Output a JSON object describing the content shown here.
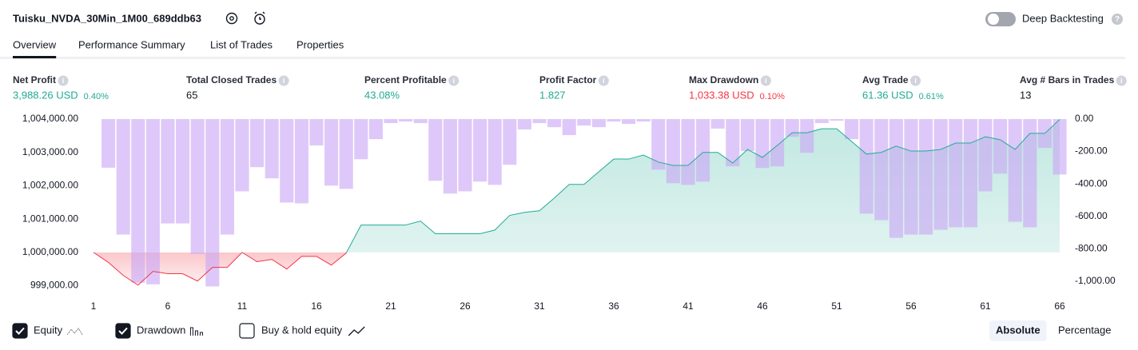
{
  "header": {
    "title": "Tuisku_NVDA_30Min_1M00_689ddb63",
    "toggle_label": "Deep Backtesting",
    "toggle_on": false,
    "help": "?"
  },
  "tabs": {
    "items": [
      "Overview",
      "Performance Summary",
      "List of Trades",
      "Properties"
    ],
    "active": 0
  },
  "metrics": [
    {
      "label": "Net Profit",
      "value": "3,988.26 USD",
      "percent": "0.40%",
      "color": "#22ab94"
    },
    {
      "label": "Total Closed Trades",
      "value": "65",
      "color": "#131722"
    },
    {
      "label": "Percent Profitable",
      "value": "43.08%",
      "color": "#22ab94"
    },
    {
      "label": "Profit Factor",
      "value": "1.827",
      "color": "#22ab94"
    },
    {
      "label": "Max Drawdown",
      "value": "1,033.38 USD",
      "percent": "0.10%",
      "color": "#f23645"
    },
    {
      "label": "Avg Trade",
      "value": "61.36 USD",
      "percent": "0.61%",
      "color": "#22ab94"
    },
    {
      "label": "Avg # Bars in Trades",
      "value": "13",
      "color": "#131722"
    }
  ],
  "chart_data": {
    "type": "line",
    "x": [
      1,
      2,
      3,
      4,
      5,
      6,
      7,
      8,
      9,
      10,
      11,
      12,
      13,
      14,
      15,
      16,
      17,
      18,
      19,
      20,
      21,
      22,
      23,
      24,
      25,
      26,
      27,
      28,
      29,
      30,
      31,
      32,
      33,
      34,
      35,
      36,
      37,
      38,
      39,
      40,
      41,
      42,
      43,
      44,
      45,
      46,
      47,
      48,
      49,
      50,
      51,
      52,
      53,
      54,
      55,
      56,
      57,
      58,
      59,
      60,
      61,
      62,
      63,
      64,
      65,
      66
    ],
    "xlim": [
      1,
      66
    ],
    "xticks": [
      1,
      6,
      11,
      16,
      21,
      26,
      31,
      36,
      41,
      46,
      51,
      56,
      61,
      66
    ],
    "ylim": [
      998750,
      1004000
    ],
    "yticks": [
      {
        "value": 999000,
        "label": "999,000.00"
      },
      {
        "value": 1000000,
        "label": "1,000,000.00"
      },
      {
        "value": 1001000,
        "label": "1,001,000.00"
      },
      {
        "value": 1002000,
        "label": "1,002,000.00"
      },
      {
        "value": 1003000,
        "label": "1,003,000.00"
      },
      {
        "value": 1004000,
        "label": "1,004,000.00"
      }
    ],
    "y2lim": [
      -1080,
      0
    ],
    "y2ticks": [
      {
        "value": 0,
        "label": "0.00"
      },
      {
        "value": -200,
        "label": "-200.00"
      },
      {
        "value": -400,
        "label": "-400.00"
      },
      {
        "value": -600,
        "label": "-600.00"
      },
      {
        "value": -800,
        "label": "-800.00"
      },
      {
        "value": -1000,
        "label": "-1,000.00"
      }
    ],
    "series": [
      {
        "name": "Equity",
        "type": "line",
        "axis": "y",
        "color": "#22ab94",
        "loss_color": "#f23645",
        "visible": true,
        "values": [
          1000000,
          999700,
          999310,
          999020,
          999430,
          999360,
          999360,
          999140,
          999550,
          999550,
          1000000,
          999720,
          999790,
          999500,
          999880,
          999880,
          999620,
          999980,
          1000820,
          1000820,
          1000820,
          1000820,
          1000940,
          1000560,
          1000560,
          1000560,
          1000560,
          1000670,
          1001110,
          1001200,
          1001250,
          1001630,
          1002040,
          1002040,
          1002420,
          1002800,
          1002800,
          1002920,
          1002710,
          1002610,
          1002610,
          1003000,
          1003000,
          1002680,
          1003090,
          1002850,
          1003210,
          1003590,
          1003590,
          1003710,
          1003710,
          1003330,
          1002950,
          1003000,
          1003190,
          1003040,
          1003040,
          1003090,
          1003280,
          1003280,
          1003470,
          1003380,
          1003090,
          1003570,
          1003570,
          1003988
        ]
      },
      {
        "name": "Drawdown",
        "type": "bar",
        "axis": "y2",
        "color": "#c9a6f5",
        "visible": true,
        "values": [
          0,
          -300,
          -713,
          -1010,
          -1020,
          -644,
          -644,
          -832,
          -1033,
          -713,
          -446,
          -297,
          -366,
          -515,
          -520,
          -163,
          -411,
          -431,
          -248,
          -124,
          -25,
          -15,
          -25,
          -381,
          -460,
          -446,
          -386,
          -406,
          -282,
          -64,
          -25,
          -50,
          -99,
          -40,
          -50,
          -15,
          -30,
          -15,
          -312,
          -396,
          -406,
          -386,
          -59,
          -292,
          -198,
          -302,
          -292,
          -109,
          -208,
          -25,
          -10,
          -124,
          -584,
          -624,
          -733,
          -713,
          -713,
          -683,
          -668,
          -668,
          -446,
          -337,
          -634,
          -668,
          -178,
          -342
        ]
      }
    ],
    "extra_legend": {
      "name": "Buy & hold equity",
      "visible": false
    },
    "scale_options": [
      "Absolute",
      "Percentage"
    ],
    "active_scale": 0
  }
}
